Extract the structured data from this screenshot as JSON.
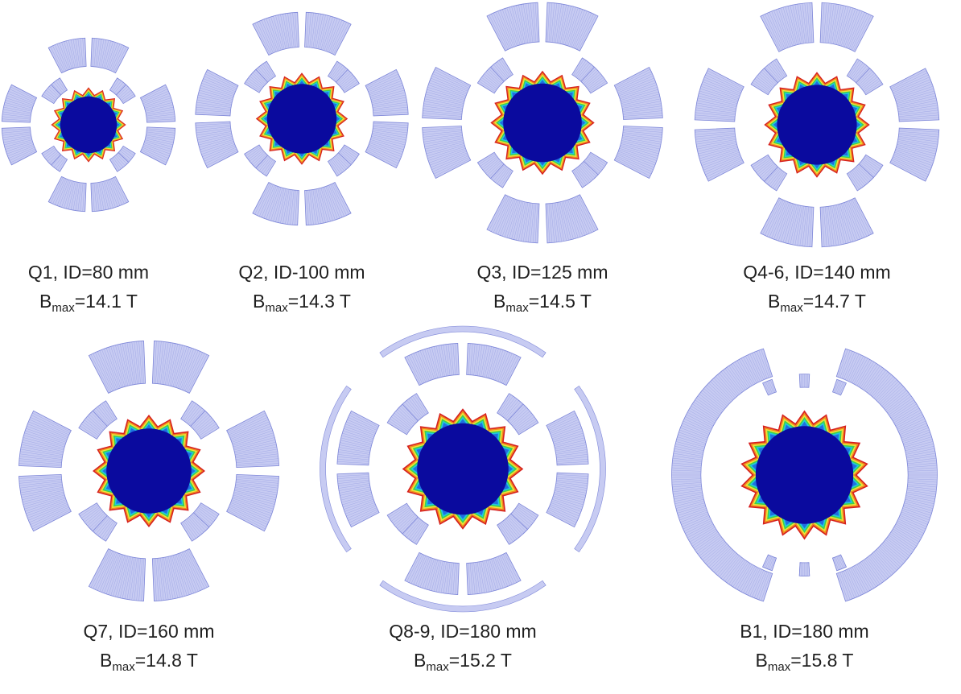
{
  "magnets": [
    {
      "id": "Q1",
      "line1": "Q1, ID=80 mm",
      "b_label": "B",
      "b_sub": "max",
      "b_value": "=14.1 T",
      "type": "quad",
      "outer_ring": false
    },
    {
      "id": "Q2",
      "line1": "Q2, ID-100 mm",
      "b_label": "B",
      "b_sub": "max",
      "b_value": "=14.3 T",
      "type": "quad",
      "outer_ring": false
    },
    {
      "id": "Q3",
      "line1": "Q3, ID=125 mm",
      "b_label": "B",
      "b_sub": "max",
      "b_value": "=14.5 T",
      "type": "quad",
      "outer_ring": false
    },
    {
      "id": "Q4-6",
      "line1": "Q4-6, ID=140 mm",
      "b_label": "B",
      "b_sub": "max",
      "b_value": "=14.7 T",
      "type": "quad",
      "outer_ring": false
    },
    {
      "id": "Q7",
      "line1": "Q7, ID=160 mm",
      "b_label": "B",
      "b_sub": "max",
      "b_value": "=14.8 T",
      "type": "quad",
      "outer_ring": false
    },
    {
      "id": "Q8-9",
      "line1": "Q8-9, ID=180 mm",
      "b_label": "B",
      "b_sub": "max",
      "b_value": "=15.2 T",
      "type": "quad",
      "outer_ring": true
    },
    {
      "id": "B1",
      "line1": "B1, ID=180 mm",
      "b_label": "B",
      "b_sub": "max",
      "b_value": "=15.8 T",
      "type": "dipole",
      "outer_ring": false
    }
  ],
  "colors": {
    "coil_fill": "#c7cbf2",
    "coil_stroke": "#7d86d8",
    "bore_core": "#0a0a9e",
    "ring1": "#1f6fe0",
    "ring2": "#21c8e0",
    "ring3": "#3fd24a",
    "ring4": "#f0e43a",
    "ring5": "#f08a1e",
    "ring6": "#d61f1f"
  }
}
